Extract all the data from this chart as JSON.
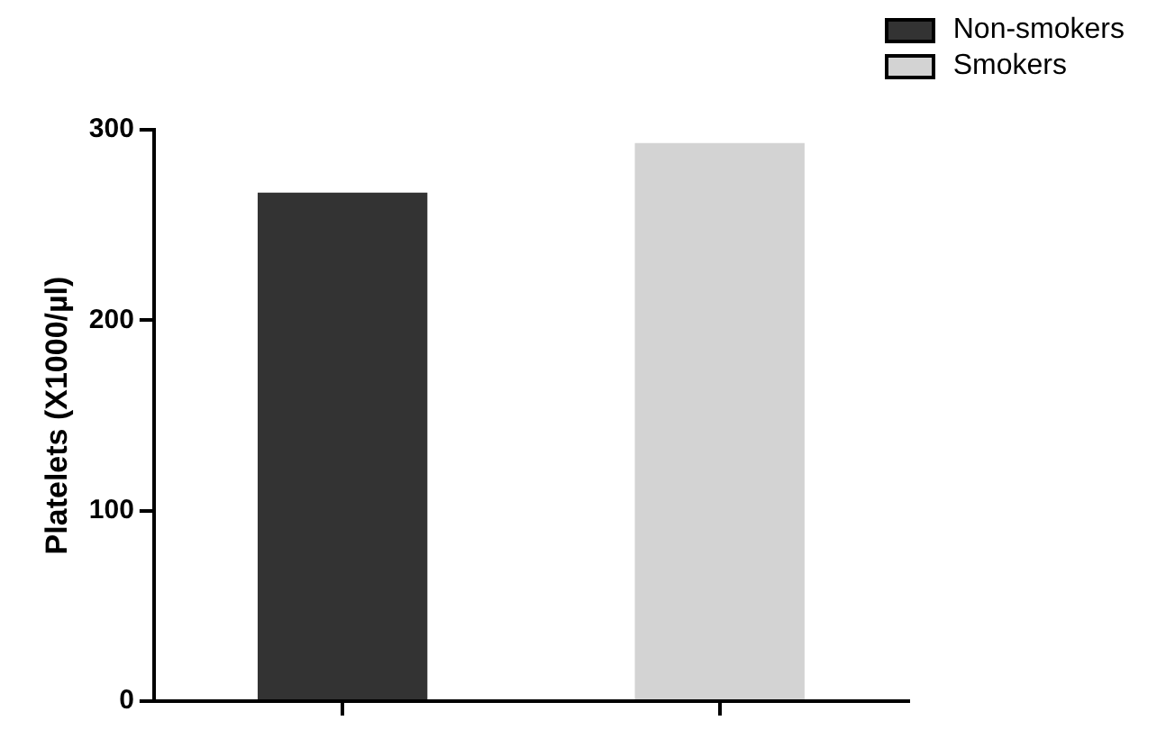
{
  "chart_data": {
    "type": "bar",
    "ylabel": "Platelets (X1000/µl)",
    "categories": [
      null,
      null
    ],
    "series": [
      {
        "name": "Non-smokers",
        "color": "#333333",
        "values": [
          267,
          null
        ]
      },
      {
        "name": "Smokers",
        "color": "#d3d3d3",
        "values": [
          null,
          293
        ]
      }
    ],
    "ylim": [
      0,
      300
    ],
    "yticks": [
      0,
      100,
      200,
      300
    ],
    "legend": "top right",
    "tick_labels": "y"
  }
}
